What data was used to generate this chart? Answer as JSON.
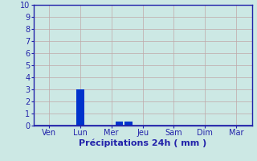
{
  "title": "",
  "xlabel": "Précipitations 24h ( mm )",
  "ylabel": "",
  "background_color": "#cce8e4",
  "plot_bg_color": "#cce8e4",
  "bar_color": "#0033cc",
  "grid_color": "#c0a8a8",
  "axis_color": "#2222aa",
  "tick_color": "#2222aa",
  "label_color": "#2222aa",
  "ylim": [
    0,
    10
  ],
  "yticks": [
    0,
    1,
    2,
    3,
    4,
    5,
    6,
    7,
    8,
    9,
    10
  ],
  "categories": [
    "Ven",
    "Lun",
    "Mer",
    "Jeu",
    "Sam",
    "Dim",
    "Mar"
  ],
  "xlabel_fontsize": 8,
  "tick_fontsize": 7,
  "bar_width": 0.25
}
